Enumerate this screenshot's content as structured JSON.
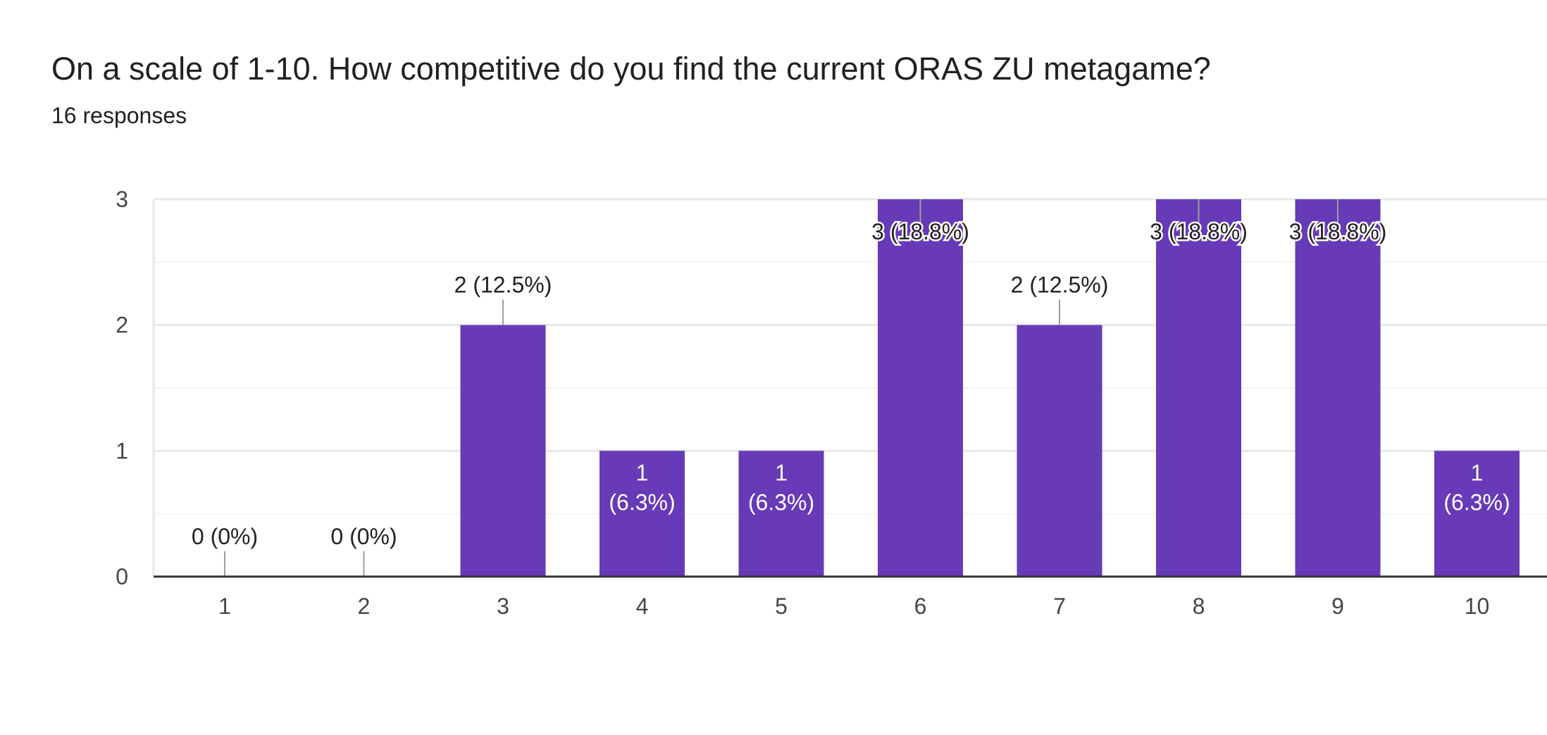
{
  "question": {
    "title": "On a scale of 1-10. How competitive do you find the current ORAS ZU metagame?",
    "responses": "16 responses"
  },
  "colors": {
    "bar": "#673AB7",
    "grid": "#E8E8E8",
    "axis": "#333333",
    "leader": "#9E9E9E"
  },
  "chart_data": {
    "type": "bar",
    "title": "On a scale of 1-10. How competitive do you find the current ORAS ZU metagame?",
    "categories": [
      "1",
      "2",
      "3",
      "4",
      "5",
      "6",
      "7",
      "8",
      "9",
      "10"
    ],
    "values": [
      0,
      0,
      2,
      1,
      1,
      3,
      2,
      3,
      3,
      1
    ],
    "labels": [
      "0 (0%)",
      "0 (0%)",
      "2 (12.5%)",
      "1 (6.3%)",
      "1 (6.3%)",
      "3 (18.8%)",
      "2 (12.5%)",
      "3 (18.8%)",
      "3 (18.8%)",
      "1 (6.3%)"
    ],
    "xlabel": "",
    "ylabel": "",
    "ylim": [
      0,
      3
    ],
    "yticks": [
      0,
      1,
      2,
      3
    ],
    "grid": true,
    "legend": "none"
  }
}
